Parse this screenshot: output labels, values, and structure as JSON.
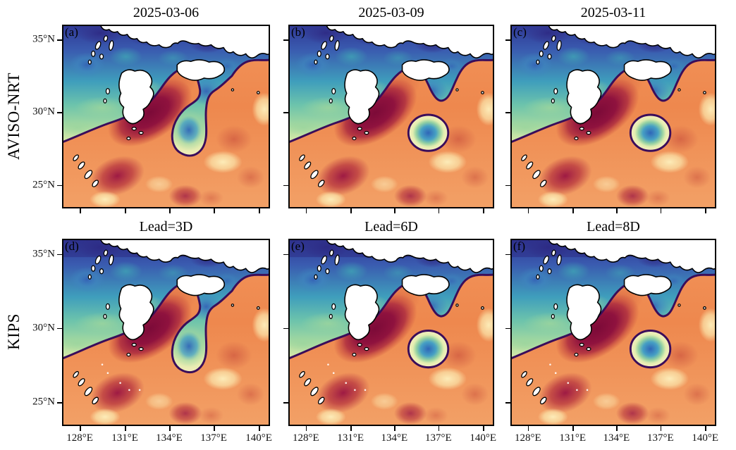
{
  "figure": {
    "row_labels": [
      "AVISO-NRT",
      "KIPS"
    ],
    "axis": {
      "x_tick_labels": [
        "128°E",
        "131°E",
        "134°E",
        "137°E",
        "140°E"
      ],
      "y_tick_labels": [
        "35°N",
        "30°N",
        "25°N"
      ]
    },
    "panels": [
      {
        "letter": "(a)",
        "title": "2025-03-06",
        "row": 0,
        "col": 0,
        "eddy": "attached"
      },
      {
        "letter": "(b)",
        "title": "2025-03-09",
        "row": 0,
        "col": 1,
        "eddy": "detached"
      },
      {
        "letter": "(c)",
        "title": "2025-03-11",
        "row": 0,
        "col": 2,
        "eddy": "detached"
      },
      {
        "letter": "(d)",
        "title": "Lead=3D",
        "row": 1,
        "col": 0,
        "eddy": "attached"
      },
      {
        "letter": "(e)",
        "title": "Lead=6D",
        "row": 1,
        "col": 1,
        "eddy": "detached"
      },
      {
        "letter": "(f)",
        "title": "Lead=8D",
        "row": 1,
        "col": 2,
        "eddy": "detached"
      }
    ],
    "colors": {
      "front_contour": "#3a0d5a",
      "land": "#ffffff",
      "coastline": "#000000",
      "warm_base": "#ef8a50",
      "warm_core": "#7c0a38",
      "warm_spot": "#c94f3c",
      "cream": "#fdeeb8",
      "cool_dark": "#2e2b85",
      "cool_blue": "#3563b6",
      "cool_teal": "#3fa4b4",
      "cool_green": "#9ad49e",
      "eddy_core": "#2f66b8"
    }
  },
  "chart_data": {
    "type": "heatmap",
    "subtype": "2x3 grid of filled-contour ocean maps (sea south of Japan)",
    "grid": {
      "rows": 2,
      "cols": 3
    },
    "rows": [
      {
        "label": "AVISO-NRT",
        "panels": [
          {
            "letter": "(a)",
            "title": "2025-03-06",
            "cold_feature": "attached meander lobe"
          },
          {
            "letter": "(b)",
            "title": "2025-03-09",
            "cold_feature": "detached closed cold-core ring"
          },
          {
            "letter": "(c)",
            "title": "2025-03-11",
            "cold_feature": "detached closed cold-core ring"
          }
        ]
      },
      {
        "label": "KIPS",
        "panels": [
          {
            "letter": "(d)",
            "title": "Lead=3D",
            "cold_feature": "attached meander lobe"
          },
          {
            "letter": "(e)",
            "title": "Lead=6D",
            "cold_feature": "detached closed cold-core ring"
          },
          {
            "letter": "(f)",
            "title": "Lead=8D",
            "cold_feature": "detached closed cold-core ring"
          }
        ]
      }
    ],
    "x_axis": {
      "tick_labels": [
        "128°E",
        "131°E",
        "134°E",
        "137°E",
        "140°E"
      ],
      "labels_shown_on": "bottom row only",
      "approx_range_deg_e": [
        126.8,
        140.8
      ]
    },
    "y_axis": {
      "tick_labels": [
        "35°N",
        "30°N",
        "25°N"
      ],
      "labels_shown_on": "left column only",
      "approx_range_deg_n": [
        23.8,
        36.2
      ]
    },
    "legend": "none (no colorbar shown)",
    "annotations": [
      "thick dark-purple contour marks the front between warm (orange/dark-red) water to the south and cool (blue/teal/green) water to the north",
      "dark-red high core elongated SW-NE near 132-134°E, 29-31°N in every panel",
      "cold pocket near 135°E, 28.5-29°N: still attached to the front in (a) and (d), pinched off as a closed ring in (b), (c), (e), (f)",
      "white land with black coastline: Kyushu, Shikoku and western Honshu (Japan) plus small offshore islands"
    ]
  }
}
